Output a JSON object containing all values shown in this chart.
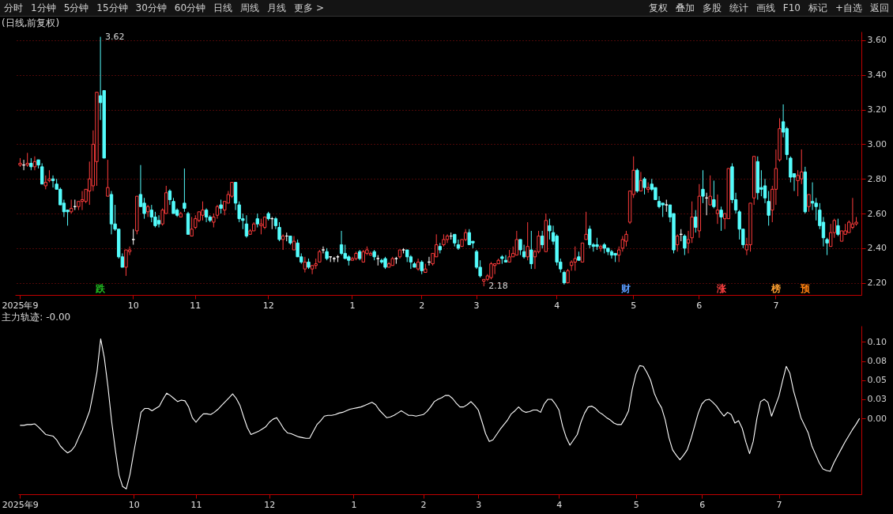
{
  "chart_data": [
    {
      "type": "other",
      "annotations": [
        "分时",
        "1分钟",
        "5分钟",
        "15分钟",
        "30分钟",
        "60分钟",
        "日线",
        "周线",
        "月线",
        "更多 >",
        "复权",
        "叠加",
        "多股",
        "统计",
        "画线",
        "F10",
        "标记",
        "+自选",
        "返回"
      ]
    },
    {
      "type": "candlestick",
      "title": "(日线,前复权)",
      "grid": "y",
      "ylim": [
        2.13,
        3.65
      ],
      "yticks": [
        {
          "value": 2.2,
          "label": "2.20"
        },
        {
          "value": 2.4,
          "label": "2.40"
        },
        {
          "value": 2.6,
          "label": "2.60"
        },
        {
          "value": 2.8,
          "label": "2.80"
        },
        {
          "value": 3.0,
          "label": "3.00"
        },
        {
          "value": 3.2,
          "label": "3.20"
        },
        {
          "value": 3.4,
          "label": "3.40"
        },
        {
          "value": 3.6,
          "label": "3.60"
        }
      ],
      "annotations": [
        "3.62",
        "2.18",
        "跌",
        "财",
        "涨",
        "榜",
        "预"
      ],
      "categories": [
        "2025年9",
        null,
        null,
        null,
        null,
        null,
        null,
        null,
        null,
        null,
        null,
        null,
        null,
        null,
        null,
        null,
        null,
        null,
        null,
        null,
        null,
        null,
        null,
        null,
        null,
        null,
        null,
        null,
        null,
        null,
        null,
        "10",
        null,
        null,
        null,
        null,
        null,
        null,
        null,
        null,
        null,
        null,
        null,
        null,
        null,
        null,
        null,
        null,
        "11",
        null,
        null,
        null,
        null,
        null,
        null,
        null,
        null,
        null,
        null,
        null,
        null,
        null,
        null,
        null,
        null,
        null,
        null,
        null,
        "12",
        null,
        null,
        null,
        null,
        null,
        null,
        null,
        null,
        null,
        null,
        null,
        null,
        null,
        null,
        null,
        null,
        null,
        null,
        null,
        null,
        null,
        null,
        "1",
        null,
        null,
        null,
        null,
        null,
        null,
        null,
        null,
        null,
        null,
        null,
        null,
        null,
        null,
        null,
        null,
        null,
        null,
        "2",
        null,
        null,
        null,
        null,
        null,
        null,
        null,
        null,
        null,
        null,
        null,
        null,
        null,
        null,
        "3",
        null,
        null,
        null,
        null,
        null,
        null,
        null,
        null,
        null,
        null,
        null,
        null,
        null,
        null,
        null,
        null,
        null,
        null,
        null,
        null,
        null,
        "4",
        null,
        null,
        null,
        null,
        null,
        null,
        null,
        null,
        null,
        null,
        null,
        null,
        null,
        null,
        null,
        null,
        null,
        null,
        null,
        null,
        "5",
        null,
        null,
        null,
        null,
        null,
        null,
        null,
        null,
        null,
        null,
        null,
        null,
        null,
        null,
        null,
        null,
        null,
        "6",
        null,
        null,
        null,
        null,
        null,
        null,
        null,
        null,
        null,
        null,
        null,
        null,
        null,
        null,
        null,
        null,
        null,
        null,
        null,
        null,
        "7",
        null,
        null,
        null,
        null,
        null,
        null,
        null,
        null,
        null,
        null,
        null,
        null,
        null,
        null,
        null,
        null,
        null,
        null,
        null,
        null,
        null,
        null
      ],
      "ohlc": [
        [
          2.88,
          2.92,
          2.87,
          2.89
        ],
        [
          2.88,
          2.91,
          2.85,
          2.88
        ],
        [
          2.88,
          2.95,
          2.87,
          2.89
        ],
        [
          2.89,
          2.92,
          2.85,
          2.87
        ],
        [
          2.87,
          2.93,
          2.85,
          2.9
        ],
        [
          2.91,
          2.91,
          2.86,
          2.88
        ],
        [
          2.87,
          2.89,
          2.77,
          2.77
        ],
        [
          2.76,
          2.82,
          2.74,
          2.78
        ],
        [
          2.79,
          2.85,
          2.78,
          2.8
        ],
        [
          2.8,
          2.82,
          2.75,
          2.79
        ],
        [
          2.77,
          2.8,
          2.74,
          2.74
        ],
        [
          2.74,
          2.75,
          2.65,
          2.65
        ],
        [
          2.66,
          2.68,
          2.58,
          2.61
        ],
        [
          2.62,
          2.62,
          2.53,
          2.61
        ],
        [
          2.61,
          2.68,
          2.6,
          2.63
        ],
        [
          2.64,
          2.68,
          2.62,
          2.64
        ],
        [
          2.64,
          2.67,
          2.62,
          2.67
        ],
        [
          2.67,
          2.73,
          2.62,
          2.68
        ],
        [
          2.67,
          2.74,
          2.66,
          2.74
        ],
        [
          2.73,
          2.9,
          2.65,
          2.8
        ],
        [
          2.76,
          3.08,
          2.73,
          3.0
        ],
        [
          2.9,
          3.3,
          2.76,
          3.3
        ],
        [
          3.28,
          3.62,
          3.14,
          3.24
        ],
        [
          3.31,
          3.31,
          2.92,
          2.92
        ],
        [
          2.7,
          2.91,
          2.7,
          2.75
        ],
        [
          2.71,
          2.73,
          2.48,
          2.54
        ],
        [
          2.54,
          2.65,
          2.5,
          2.51
        ],
        [
          2.51,
          2.51,
          2.34,
          2.35
        ],
        [
          2.35,
          2.37,
          2.29,
          2.29
        ],
        [
          2.29,
          2.39,
          2.24,
          2.39
        ],
        [
          2.38,
          2.41,
          2.36,
          2.39
        ],
        [
          2.45,
          2.51,
          2.42,
          2.45
        ],
        [
          2.5,
          2.7,
          2.48,
          2.7
        ],
        [
          2.71,
          2.88,
          2.64,
          2.64
        ],
        [
          2.66,
          2.69,
          2.57,
          2.6
        ],
        [
          2.61,
          2.65,
          2.58,
          2.64
        ],
        [
          2.62,
          2.65,
          2.55,
          2.58
        ],
        [
          2.58,
          2.61,
          2.52,
          2.53
        ],
        [
          2.56,
          2.59,
          2.52,
          2.54
        ],
        [
          2.54,
          2.63,
          2.53,
          2.62
        ],
        [
          2.6,
          2.76,
          2.6,
          2.72
        ],
        [
          2.73,
          2.74,
          2.65,
          2.68
        ],
        [
          2.67,
          2.69,
          2.6,
          2.6
        ],
        [
          2.62,
          2.63,
          2.58,
          2.59
        ],
        [
          2.58,
          2.61,
          2.58,
          2.6
        ],
        [
          2.66,
          2.86,
          2.61,
          2.63
        ],
        [
          2.6,
          2.61,
          2.48,
          2.48
        ],
        [
          2.47,
          2.58,
          2.47,
          2.51
        ],
        [
          2.52,
          2.59,
          2.51,
          2.57
        ],
        [
          2.56,
          2.61,
          2.55,
          2.61
        ],
        [
          2.59,
          2.67,
          2.56,
          2.62
        ],
        [
          2.62,
          2.63,
          2.55,
          2.58
        ],
        [
          2.58,
          2.59,
          2.55,
          2.56
        ],
        [
          2.55,
          2.6,
          2.52,
          2.58
        ],
        [
          2.59,
          2.65,
          2.57,
          2.64
        ],
        [
          2.65,
          2.68,
          2.6,
          2.63
        ],
        [
          2.62,
          2.67,
          2.59,
          2.67
        ],
        [
          2.66,
          2.73,
          2.66,
          2.71
        ],
        [
          2.7,
          2.78,
          2.69,
          2.78
        ],
        [
          2.78,
          2.78,
          2.62,
          2.66
        ],
        [
          2.65,
          2.67,
          2.55,
          2.57
        ],
        [
          2.57,
          2.6,
          2.51,
          2.56
        ],
        [
          2.54,
          2.59,
          2.46,
          2.47
        ],
        [
          2.48,
          2.51,
          2.48,
          2.5
        ],
        [
          2.5,
          2.55,
          2.5,
          2.54
        ],
        [
          2.57,
          2.6,
          2.52,
          2.54
        ],
        [
          2.53,
          2.57,
          2.48,
          2.54
        ],
        [
          2.52,
          2.58,
          2.51,
          2.58
        ],
        [
          2.6,
          2.61,
          2.56,
          2.57
        ],
        [
          2.57,
          2.58,
          2.51,
          2.57
        ],
        [
          2.57,
          2.58,
          2.51,
          2.53
        ],
        [
          2.52,
          2.55,
          2.44,
          2.45
        ],
        [
          2.45,
          2.48,
          2.39,
          2.47
        ],
        [
          2.47,
          2.49,
          2.44,
          2.47
        ],
        [
          2.47,
          2.47,
          2.42,
          2.43
        ],
        [
          2.39,
          2.47,
          2.39,
          2.44
        ],
        [
          2.43,
          2.45,
          2.35,
          2.35
        ],
        [
          2.35,
          2.37,
          2.31,
          2.32
        ],
        [
          2.28,
          2.35,
          2.26,
          2.32
        ],
        [
          2.32,
          2.34,
          2.28,
          2.29
        ],
        [
          2.28,
          2.3,
          2.25,
          2.3
        ],
        [
          2.3,
          2.34,
          2.28,
          2.31
        ],
        [
          2.32,
          2.39,
          2.32,
          2.38
        ],
        [
          2.39,
          2.41,
          2.37,
          2.39
        ],
        [
          2.38,
          2.4,
          2.33,
          2.34
        ],
        [
          2.35,
          2.35,
          2.32,
          2.35
        ],
        [
          2.34,
          2.35,
          2.32,
          2.34
        ],
        [
          2.35,
          2.36,
          2.32,
          2.35
        ],
        [
          2.42,
          2.5,
          2.36,
          2.37
        ],
        [
          2.37,
          2.42,
          2.34,
          2.34
        ],
        [
          2.35,
          2.36,
          2.3,
          2.33
        ],
        [
          2.33,
          2.35,
          2.33,
          2.34
        ],
        [
          2.34,
          2.38,
          2.33,
          2.37
        ],
        [
          2.38,
          2.39,
          2.33,
          2.34
        ],
        [
          2.32,
          2.39,
          2.32,
          2.38
        ],
        [
          2.37,
          2.41,
          2.36,
          2.39
        ],
        [
          2.36,
          2.38,
          2.36,
          2.37
        ],
        [
          2.38,
          2.39,
          2.33,
          2.35
        ],
        [
          2.34,
          2.36,
          2.3,
          2.34
        ],
        [
          2.33,
          2.34,
          2.31,
          2.32
        ],
        [
          2.34,
          2.35,
          2.28,
          2.29
        ],
        [
          2.29,
          2.32,
          2.29,
          2.31
        ],
        [
          2.3,
          2.35,
          2.3,
          2.34
        ],
        [
          2.34,
          2.35,
          2.31,
          2.34
        ],
        [
          2.35,
          2.39,
          2.34,
          2.39
        ],
        [
          2.39,
          2.4,
          2.37,
          2.39
        ],
        [
          2.39,
          2.39,
          2.32,
          2.35
        ],
        [
          2.35,
          2.36,
          2.28,
          2.32
        ],
        [
          2.31,
          2.32,
          2.29,
          2.29
        ],
        [
          2.28,
          2.34,
          2.27,
          2.32
        ],
        [
          2.32,
          2.33,
          2.25,
          2.27
        ],
        [
          2.26,
          2.31,
          2.26,
          2.28
        ],
        [
          2.32,
          2.35,
          2.3,
          2.32
        ],
        [
          2.31,
          2.37,
          2.3,
          2.37
        ],
        [
          2.35,
          2.48,
          2.35,
          2.42
        ],
        [
          2.41,
          2.43,
          2.37,
          2.39
        ],
        [
          2.42,
          2.48,
          2.41,
          2.45
        ],
        [
          2.45,
          2.48,
          2.43,
          2.47
        ],
        [
          2.47,
          2.49,
          2.45,
          2.47
        ],
        [
          2.48,
          2.48,
          2.41,
          2.43
        ],
        [
          2.42,
          2.45,
          2.39,
          2.4
        ],
        [
          2.41,
          2.45,
          2.41,
          2.45
        ],
        [
          2.45,
          2.51,
          2.44,
          2.49
        ],
        [
          2.49,
          2.51,
          2.42,
          2.42
        ],
        [
          2.44,
          2.44,
          2.4,
          2.43
        ],
        [
          2.38,
          2.39,
          2.28,
          2.29
        ],
        [
          2.29,
          2.33,
          2.23,
          2.24
        ],
        [
          2.21,
          2.22,
          2.18,
          2.22
        ],
        [
          2.22,
          2.25,
          2.21,
          2.24
        ],
        [
          2.23,
          2.32,
          2.22,
          2.31
        ],
        [
          2.3,
          2.31,
          2.25,
          2.31
        ],
        [
          2.31,
          2.34,
          2.31,
          2.33
        ],
        [
          2.35,
          2.36,
          2.31,
          2.34
        ],
        [
          2.33,
          2.36,
          2.32,
          2.32
        ],
        [
          2.32,
          2.39,
          2.32,
          2.35
        ],
        [
          2.35,
          2.41,
          2.35,
          2.37
        ],
        [
          2.36,
          2.5,
          2.36,
          2.45
        ],
        [
          2.45,
          2.45,
          2.36,
          2.39
        ],
        [
          2.38,
          2.42,
          2.34,
          2.35
        ],
        [
          2.35,
          2.55,
          2.33,
          2.41
        ],
        [
          2.39,
          2.5,
          2.28,
          2.31
        ],
        [
          2.35,
          2.39,
          2.28,
          2.38
        ],
        [
          2.38,
          2.5,
          2.37,
          2.47
        ],
        [
          2.47,
          2.5,
          2.4,
          2.42
        ],
        [
          2.38,
          2.6,
          2.38,
          2.56
        ],
        [
          2.53,
          2.57,
          2.45,
          2.5
        ],
        [
          2.49,
          2.53,
          2.42,
          2.44
        ],
        [
          2.47,
          2.48,
          2.3,
          2.32
        ],
        [
          2.32,
          2.34,
          2.26,
          2.28
        ],
        [
          2.26,
          2.27,
          2.19,
          2.2
        ],
        [
          2.2,
          2.28,
          2.2,
          2.27
        ],
        [
          2.3,
          2.33,
          2.27,
          2.32
        ],
        [
          2.32,
          2.41,
          2.27,
          2.34
        ],
        [
          2.35,
          2.38,
          2.33,
          2.33
        ],
        [
          2.32,
          2.43,
          2.32,
          2.43
        ],
        [
          2.45,
          2.61,
          2.45,
          2.48
        ],
        [
          2.51,
          2.53,
          2.4,
          2.42
        ],
        [
          2.42,
          2.43,
          2.38,
          2.41
        ],
        [
          2.42,
          2.46,
          2.39,
          2.41
        ],
        [
          2.4,
          2.42,
          2.38,
          2.41
        ],
        [
          2.42,
          2.43,
          2.37,
          2.4
        ],
        [
          2.4,
          2.4,
          2.36,
          2.38
        ],
        [
          2.38,
          2.39,
          2.34,
          2.36
        ],
        [
          2.37,
          2.37,
          2.32,
          2.36
        ],
        [
          2.36,
          2.41,
          2.32,
          2.39
        ],
        [
          2.4,
          2.47,
          2.38,
          2.45
        ],
        [
          2.44,
          2.5,
          2.41,
          2.48
        ],
        [
          2.55,
          2.73,
          2.54,
          2.73
        ],
        [
          2.71,
          2.93,
          2.69,
          2.85
        ],
        [
          2.85,
          2.86,
          2.72,
          2.73
        ],
        [
          2.73,
          2.84,
          2.73,
          2.79
        ],
        [
          2.8,
          2.81,
          2.71,
          2.75
        ],
        [
          2.74,
          2.78,
          2.72,
          2.75
        ],
        [
          2.77,
          2.8,
          2.73,
          2.74
        ],
        [
          2.75,
          2.75,
          2.68,
          2.68
        ],
        [
          2.67,
          2.7,
          2.63,
          2.64
        ],
        [
          2.66,
          2.66,
          2.58,
          2.65
        ],
        [
          2.65,
          2.68,
          2.61,
          2.65
        ],
        [
          2.65,
          2.65,
          2.55,
          2.58
        ],
        [
          2.6,
          2.6,
          2.37,
          2.39
        ],
        [
          2.42,
          2.48,
          2.38,
          2.47
        ],
        [
          2.48,
          2.51,
          2.44,
          2.48
        ],
        [
          2.47,
          2.48,
          2.36,
          2.4
        ],
        [
          2.43,
          2.5,
          2.37,
          2.45
        ],
        [
          2.46,
          2.67,
          2.43,
          2.58
        ],
        [
          2.58,
          2.62,
          2.49,
          2.52
        ],
        [
          2.5,
          2.77,
          2.46,
          2.7
        ],
        [
          2.74,
          2.85,
          2.66,
          2.7
        ],
        [
          2.69,
          2.72,
          2.59,
          2.69
        ],
        [
          2.65,
          2.82,
          2.65,
          2.7
        ],
        [
          2.68,
          2.79,
          2.63,
          2.64
        ],
        [
          2.6,
          2.71,
          2.54,
          2.62
        ],
        [
          2.62,
          2.64,
          2.5,
          2.58
        ],
        [
          2.57,
          2.6,
          2.51,
          2.6
        ],
        [
          2.57,
          2.86,
          2.57,
          2.86
        ],
        [
          2.87,
          2.89,
          2.66,
          2.68
        ],
        [
          2.68,
          2.72,
          2.6,
          2.62
        ],
        [
          2.61,
          2.62,
          2.45,
          2.51
        ],
        [
          2.51,
          2.51,
          2.4,
          2.42
        ],
        [
          2.39,
          2.46,
          2.36,
          2.42
        ],
        [
          2.42,
          2.66,
          2.38,
          2.66
        ],
        [
          2.69,
          2.93,
          2.65,
          2.93
        ],
        [
          2.9,
          2.93,
          2.68,
          2.72
        ],
        [
          2.75,
          2.85,
          2.7,
          2.74
        ],
        [
          2.76,
          2.8,
          2.66,
          2.69
        ],
        [
          2.67,
          2.73,
          2.53,
          2.59
        ],
        [
          2.62,
          2.76,
          2.55,
          2.74
        ],
        [
          2.74,
          2.97,
          2.65,
          2.86
        ],
        [
          2.91,
          3.15,
          2.9,
          3.09
        ],
        [
          3.13,
          3.23,
          3.04,
          3.07
        ],
        [
          3.09,
          3.1,
          2.91,
          2.94
        ],
        [
          2.92,
          2.93,
          2.78,
          2.81
        ],
        [
          2.83,
          2.83,
          2.73,
          2.81
        ],
        [
          2.79,
          2.85,
          2.7,
          2.82
        ],
        [
          2.8,
          2.97,
          2.77,
          2.84
        ],
        [
          2.84,
          2.87,
          2.6,
          2.61
        ],
        [
          2.64,
          2.71,
          2.61,
          2.71
        ],
        [
          2.67,
          2.78,
          2.62,
          2.66
        ],
        [
          2.66,
          2.69,
          2.56,
          2.64
        ],
        [
          2.62,
          2.66,
          2.51,
          2.53
        ],
        [
          2.55,
          2.58,
          2.41,
          2.46
        ],
        [
          2.45,
          2.46,
          2.36,
          2.43
        ],
        [
          2.41,
          2.54,
          2.41,
          2.49
        ],
        [
          2.49,
          2.57,
          2.46,
          2.56
        ],
        [
          2.53,
          2.57,
          2.47,
          2.48
        ],
        [
          2.44,
          2.5,
          2.44,
          2.5
        ],
        [
          2.48,
          2.54,
          2.48,
          2.5
        ],
        [
          2.49,
          2.56,
          2.49,
          2.55
        ],
        [
          2.52,
          2.69,
          2.51,
          2.54
        ],
        [
          2.54,
          2.58,
          2.53,
          2.55
        ]
      ]
    },
    {
      "type": "line",
      "title": "主力轨迹: -0.00",
      "ylim": [
        -0.099,
        0.121
      ],
      "yticks": [
        {
          "value": 0,
          "label": "0.00"
        },
        {
          "value": 0.025,
          "label": "0.03"
        },
        {
          "value": 0.05,
          "label": "0.05"
        },
        {
          "value": 0.075,
          "label": "0.08"
        },
        {
          "value": 0.1,
          "label": "0.10"
        }
      ],
      "categories": [
        "2025年9",
        null,
        null,
        null,
        null,
        null,
        null,
        null,
        null,
        null,
        null,
        null,
        null,
        null,
        null,
        null,
        null,
        null,
        null,
        null,
        null,
        null,
        null,
        null,
        null,
        null,
        null,
        null,
        null,
        null,
        null,
        "10",
        null,
        null,
        null,
        null,
        null,
        null,
        null,
        null,
        null,
        null,
        null,
        null,
        null,
        null,
        null,
        null,
        "11",
        null,
        null,
        null,
        null,
        null,
        null,
        null,
        null,
        null,
        null,
        null,
        null,
        null,
        null,
        null,
        null,
        null,
        null,
        null,
        "12",
        null,
        null,
        null,
        null,
        null,
        null,
        null,
        null,
        null,
        null,
        null,
        null,
        null,
        null,
        null,
        null,
        null,
        null,
        null,
        null,
        null,
        null,
        "1",
        null,
        null,
        null,
        null,
        null,
        null,
        null,
        null,
        null,
        null,
        null,
        null,
        null,
        null,
        null,
        null,
        null,
        null,
        "2",
        null,
        null,
        null,
        null,
        null,
        null,
        null,
        null,
        null,
        null,
        null,
        null,
        null,
        null,
        "3",
        null,
        null,
        null,
        null,
        null,
        null,
        null,
        null,
        null,
        null,
        null,
        null,
        null,
        null,
        null,
        null,
        null,
        null,
        null,
        null,
        null,
        "4",
        null,
        null,
        null,
        null,
        null,
        null,
        null,
        null,
        null,
        null,
        null,
        null,
        null,
        null,
        null,
        null,
        null,
        null,
        null,
        null,
        "5",
        null,
        null,
        null,
        null,
        null,
        null,
        null,
        null,
        null,
        null,
        null,
        null,
        null,
        null,
        null,
        null,
        null,
        "6",
        null,
        null,
        null,
        null,
        null,
        null,
        null,
        null,
        null,
        null,
        null,
        null,
        null,
        null,
        null,
        null,
        null,
        null,
        null,
        null,
        "7",
        null,
        null,
        null,
        null,
        null,
        null,
        null,
        null,
        null,
        null,
        null,
        null,
        null,
        null,
        null,
        null,
        null,
        null,
        null,
        null,
        null,
        null
      ],
      "series": [
        {
          "color": "#ffffff",
          "values": [
            -0.009,
            -0.009,
            -0.008,
            -0.008,
            -0.007,
            -0.011,
            -0.016,
            -0.021,
            -0.022,
            -0.023,
            -0.028,
            -0.036,
            -0.041,
            -0.045,
            -0.042,
            -0.036,
            -0.025,
            -0.015,
            -0.003,
            0.01,
            0.034,
            0.061,
            0.104,
            0.079,
            0.041,
            -0.004,
            -0.041,
            -0.074,
            -0.089,
            -0.092,
            -0.073,
            -0.045,
            -0.019,
            0.008,
            0.013,
            0.013,
            0.01,
            0.013,
            0.016,
            0.025,
            0.033,
            0.03,
            0.026,
            0.022,
            0.024,
            0.023,
            0.015,
            0.001,
            -0.005,
            0.001,
            0.006,
            0.006,
            0.005,
            0.008,
            0.012,
            0.017,
            0.022,
            0.027,
            0.032,
            0.026,
            0.017,
            0.002,
            -0.012,
            -0.021,
            -0.019,
            -0.017,
            -0.014,
            -0.011,
            -0.005,
            -0.001,
            0.001,
            -0.006,
            -0.014,
            -0.019,
            -0.02,
            -0.022,
            -0.024,
            -0.025,
            -0.026,
            -0.026,
            -0.017,
            -0.008,
            -0.003,
            0.003,
            0.004,
            0.004,
            0.005,
            0.007,
            0.008,
            0.01,
            0.012,
            0.013,
            0.014,
            0.015,
            0.017,
            0.019,
            0.021,
            0.018,
            0.011,
            0.006,
            0.001,
            0.002,
            0.004,
            0.007,
            0.01,
            0.007,
            0.004,
            0.004,
            0.003,
            0.004,
            0.005,
            0.009,
            0.015,
            0.022,
            0.025,
            0.027,
            0.03,
            0.03,
            0.026,
            0.02,
            0.015,
            0.015,
            0.018,
            0.022,
            0.017,
            0.011,
            -0.004,
            -0.02,
            -0.03,
            -0.028,
            -0.021,
            -0.014,
            -0.008,
            -0.002,
            0.006,
            0.01,
            0.015,
            0.01,
            0.008,
            0.009,
            0.011,
            0.011,
            0.008,
            0.019,
            0.025,
            0.025,
            0.019,
            0.011,
            -0.01,
            -0.025,
            -0.035,
            -0.028,
            -0.021,
            -0.005,
            0.007,
            0.015,
            0.016,
            0.013,
            0.008,
            0.005,
            0.001,
            -0.002,
            -0.006,
            -0.008,
            -0.008,
            0.0,
            0.01,
            0.038,
            0.058,
            0.069,
            0.068,
            0.06,
            0.05,
            0.033,
            0.022,
            0.014,
            -0.002,
            -0.025,
            -0.041,
            -0.048,
            -0.054,
            -0.048,
            -0.041,
            -0.027,
            -0.01,
            0.007,
            0.019,
            0.024,
            0.025,
            0.021,
            0.016,
            0.009,
            0.003,
            0.008,
            0.005,
            -0.006,
            -0.003,
            -0.013,
            -0.031,
            -0.046,
            -0.03,
            0.0,
            0.022,
            0.025,
            0.021,
            0.003,
            0.016,
            0.029,
            0.049,
            0.068,
            0.059,
            0.036,
            0.019,
            0.001,
            -0.009,
            -0.019,
            -0.036,
            -0.047,
            -0.058,
            -0.066,
            -0.068,
            -0.069,
            -0.058,
            -0.049,
            -0.04,
            -0.031,
            -0.023,
            -0.015,
            -0.008,
            0.0
          ]
        }
      ]
    }
  ]
}
